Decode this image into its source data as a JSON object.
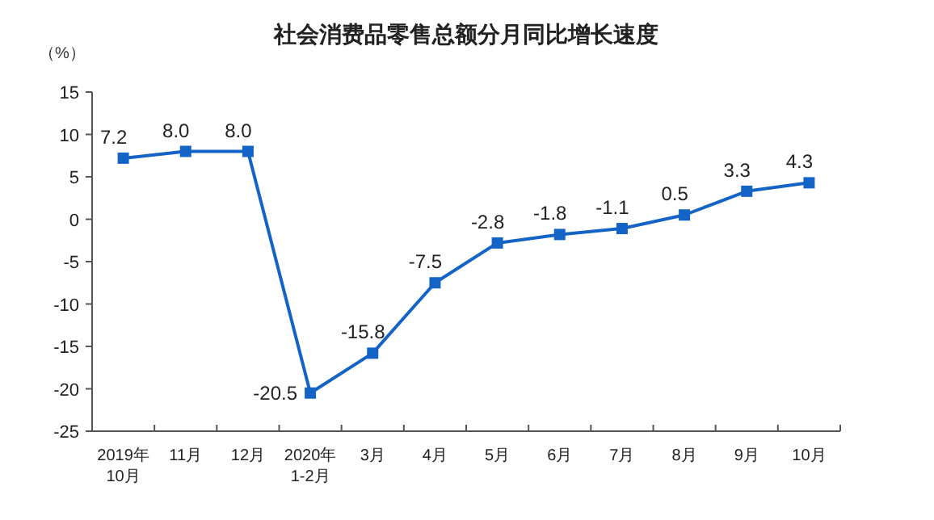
{
  "chart_data": {
    "type": "line",
    "title": "社会消费品零售总额分月同比增长速度",
    "ylabel": "（%）",
    "categories": [
      "2019年\n10月",
      "11月",
      "12月",
      "2020年\n1-2月",
      "3月",
      "4月",
      "5月",
      "6月",
      "7月",
      "8月",
      "9月",
      "10月"
    ],
    "series": [
      {
        "color": "#1464c8",
        "values": [
          7.2,
          8.0,
          8.0,
          -20.5,
          -15.8,
          -7.5,
          -2.8,
          -1.8,
          -1.1,
          0.5,
          3.3,
          4.3
        ],
        "value_labels": [
          "7.2",
          "8.0",
          "8.0",
          "-20.5",
          "-15.8",
          "-7.5",
          "-2.8",
          "-1.8",
          "-1.1",
          "0.5",
          "3.3",
          "4.3"
        ]
      }
    ],
    "ylim": [
      -25,
      15
    ],
    "yticks": [
      -25,
      -20,
      -15,
      -10,
      -5,
      0,
      5,
      10,
      15
    ],
    "marker": "square",
    "line_style": "solid",
    "grid": false
  }
}
